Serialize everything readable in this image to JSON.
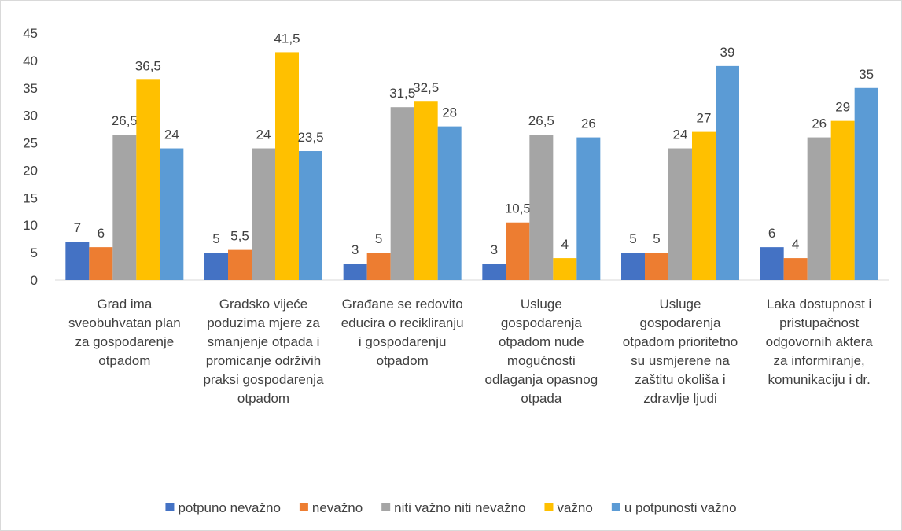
{
  "chart_data": {
    "type": "bar",
    "categories": [
      "Grad ima sveobuhvatan plan za gospodarenje otpadom",
      "Gradsko vijeće poduzima mjere za smanjenje otpada i promicanje održivih praksi gospodarenja otpadom",
      "Građane se redovito educira o recikliranju i gospodarenju otpadom",
      "Usluge gospodarenja otpadom nude mogućnosti odlaganja opasnog otpada",
      "Usluge gospodarenja otpadom prioritetno su usmjerene na zaštitu okoliša i zdravlje ljudi",
      "Laka dostupnost i pristupačnost odgovornih aktera za informiranje, komunikaciju i dr."
    ],
    "series": [
      {
        "name": "potpuno nevažno",
        "color": "#4472c4",
        "values": [
          7,
          5,
          3,
          3,
          5,
          6
        ]
      },
      {
        "name": "nevažno",
        "color": "#ed7d31",
        "values": [
          6,
          5.5,
          5,
          10.5,
          5,
          4
        ],
        "value_labels": [
          "6",
          "5,5",
          "5",
          "10,5",
          "5",
          "4"
        ]
      },
      {
        "name": "niti važno niti nevažno",
        "color": "#a5a5a5",
        "values": [
          26.5,
          24,
          31.5,
          26.5,
          24,
          26
        ],
        "value_labels": [
          "26,5",
          "24",
          "31,5",
          "26,5",
          "24",
          "26"
        ]
      },
      {
        "name": "važno",
        "color": "#ffc000",
        "values": [
          36.5,
          41.5,
          32.5,
          4,
          27,
          29
        ],
        "value_labels": [
          "36,5",
          "41,5",
          "32,5",
          "4",
          "27",
          "29"
        ]
      },
      {
        "name": "u potpunosti važno",
        "color": "#5b9bd5",
        "values": [
          24,
          23.5,
          28,
          26,
          39,
          35
        ],
        "value_labels": [
          "24",
          "23,5",
          "28",
          "26",
          "39",
          "35"
        ]
      }
    ],
    "ylim": [
      0,
      45
    ],
    "yticks": [
      0,
      5,
      10,
      15,
      20,
      25,
      30,
      35,
      40,
      45
    ],
    "grid": false,
    "legend": "bottom"
  }
}
